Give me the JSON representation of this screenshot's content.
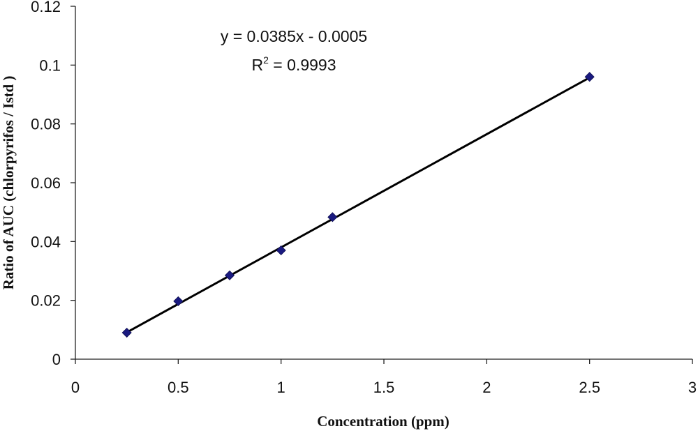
{
  "chart_data": {
    "type": "scatter",
    "title": "",
    "xlabel": "Concentration (ppm)",
    "ylabel": "Ratio of AUC (chlorpyrifos / Istd )",
    "xlim": [
      0,
      3
    ],
    "ylim": [
      0,
      0.12
    ],
    "x_ticks": [
      "0",
      "0.5",
      "1",
      "1.5",
      "2",
      "2.5",
      "3"
    ],
    "y_ticks": [
      "0",
      "0.02",
      "0.04",
      "0.06",
      "0.08",
      "0.1",
      "0.12"
    ],
    "grid": false,
    "legend": "none",
    "series": [
      {
        "x": [
          0.25,
          0.5,
          0.75,
          1.0,
          1.25,
          2.5
        ],
        "y": [
          0.009,
          0.0197,
          0.0285,
          0.037,
          0.0483,
          0.096
        ],
        "marker": "diamond",
        "color": "#1a1a80"
      }
    ],
    "trendline": {
      "type": "linear",
      "slope": 0.0385,
      "intercept": -0.0005,
      "x_range": [
        0.25,
        2.5
      ],
      "color": "#000000"
    },
    "annotations": {
      "equation": "y = 0.0385x - 0.0005",
      "r2_label": "R",
      "r2_superscript": "2",
      "r2_value": " = 0.9993"
    }
  }
}
